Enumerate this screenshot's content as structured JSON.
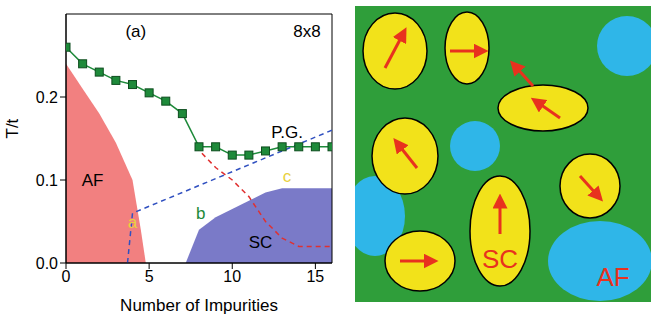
{
  "chart_data": {
    "type": "line",
    "x_label": "Number of Impurities",
    "y_label": "T/t",
    "xlim": [
      0,
      16
    ],
    "xticks": [
      0,
      5,
      10,
      15
    ],
    "ylim": [
      0,
      0.3
    ],
    "yticks": [
      {
        "value": 0,
        "label": "0.0"
      },
      0.1,
      0.2
    ],
    "series": [
      {
        "type": "area",
        "color": "#f28080",
        "x": [
          0,
          1,
          2,
          3,
          4,
          4.5,
          4.8
        ],
        "values": [
          0.24,
          0.21,
          0.18,
          0.145,
          0.1,
          0.04,
          0
        ]
      },
      {
        "type": "area",
        "color": "#7a7ac8",
        "x": [
          7.2,
          8,
          9,
          10,
          11,
          12,
          13,
          16
        ],
        "values": [
          0,
          0.04,
          0.055,
          0.065,
          0.075,
          0.085,
          0.09,
          0.09
        ]
      },
      {
        "type": "line",
        "color": "#1e8a3a",
        "marker": "square",
        "line_style": "solid",
        "x": [
          0,
          1,
          2,
          3,
          4,
          5,
          6,
          7,
          8,
          9,
          10,
          11,
          12,
          13,
          14,
          15,
          16
        ],
        "values": [
          0.26,
          0.24,
          0.23,
          0.22,
          0.215,
          0.205,
          0.195,
          0.18,
          0.14,
          0.14,
          0.13,
          0.13,
          0.135,
          0.14,
          0.14,
          0.14,
          0.14
        ]
      },
      {
        "type": "line",
        "color": "#e03030",
        "line_style": "dashed",
        "x": [
          7.8,
          9,
          10,
          11,
          12,
          13,
          14,
          16
        ],
        "values": [
          0.14,
          0.115,
          0.1,
          0.08,
          0.05,
          0.03,
          0.02,
          0.02
        ]
      },
      {
        "type": "line",
        "color": "#3050c0",
        "line_style": "dashed",
        "x": [
          3.7,
          4,
          16
        ],
        "values": [
          0,
          0.06,
          0.16
        ]
      }
    ],
    "annotations": [
      {
        "text": "(a)",
        "x": 4.2,
        "y": 0.28,
        "color": "#000000"
      },
      {
        "text": "8x8",
        "x": 14.5,
        "y": 0.28,
        "color": "#000000"
      },
      {
        "text": "P.G.",
        "x": 13.3,
        "y": 0.158,
        "color": "#000000"
      },
      {
        "text": "AF",
        "x": 1.6,
        "y": 0.1,
        "color": "#000000"
      },
      {
        "text": "a",
        "x": 4.0,
        "y": 0.05,
        "color": "#e8d040"
      },
      {
        "text": "b",
        "x": 8.1,
        "y": 0.06,
        "color": "#1e8a3a"
      },
      {
        "text": "c",
        "x": 13.3,
        "y": 0.105,
        "color": "#e8d040"
      },
      {
        "text": "SC",
        "x": 11.7,
        "y": 0.025,
        "color": "#000000"
      }
    ]
  },
  "cartoon": {
    "sc_label": "SC",
    "af_label": "AF"
  }
}
